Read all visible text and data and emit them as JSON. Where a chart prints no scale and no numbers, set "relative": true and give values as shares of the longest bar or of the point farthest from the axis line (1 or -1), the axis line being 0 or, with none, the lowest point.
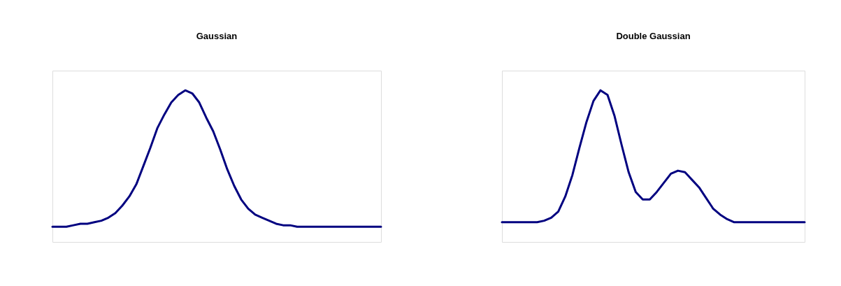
{
  "chart_data": [
    {
      "type": "line",
      "title": "Gaussian",
      "relative": true,
      "grid": false,
      "marker": "none",
      "line_style": "solid",
      "categories": [
        null,
        null,
        null,
        null,
        null,
        null,
        null,
        null,
        null,
        null,
        null,
        null,
        null,
        null,
        null,
        null,
        null,
        null,
        null,
        null,
        null,
        null,
        null,
        null,
        null,
        null,
        null,
        null,
        null,
        null,
        null,
        null,
        null,
        null,
        null,
        null,
        null,
        null,
        null,
        null,
        null,
        null,
        null,
        null,
        null,
        null,
        null,
        null
      ],
      "series": [
        {
          "color": "#000080",
          "values": [
            0.1,
            0.1,
            0.1,
            0.11,
            0.12,
            0.12,
            0.13,
            0.14,
            0.16,
            0.19,
            0.24,
            0.3,
            0.38,
            0.5,
            0.62,
            0.75,
            0.84,
            0.92,
            0.97,
            1.0,
            0.98,
            0.92,
            0.82,
            0.73,
            0.61,
            0.48,
            0.37,
            0.28,
            0.22,
            0.18,
            0.16,
            0.14,
            0.12,
            0.11,
            0.11,
            0.1,
            0.1,
            0.1,
            0.1,
            0.1,
            0.1,
            0.1,
            0.1,
            0.1,
            0.1,
            0.1,
            0.1,
            0.1
          ]
        }
      ]
    },
    {
      "type": "line",
      "title": "Double Gaussian",
      "relative": true,
      "grid": false,
      "marker": "none",
      "line_style": "solid",
      "categories": [
        null,
        null,
        null,
        null,
        null,
        null,
        null,
        null,
        null,
        null,
        null,
        null,
        null,
        null,
        null,
        null,
        null,
        null,
        null,
        null,
        null,
        null,
        null,
        null,
        null,
        null,
        null,
        null,
        null,
        null,
        null,
        null,
        null,
        null,
        null,
        null,
        null,
        null,
        null,
        null,
        null,
        null,
        null,
        null
      ],
      "series": [
        {
          "color": "#000080",
          "values": [
            0.13,
            0.13,
            0.13,
            0.13,
            0.13,
            0.13,
            0.14,
            0.16,
            0.2,
            0.3,
            0.44,
            0.62,
            0.79,
            0.93,
            1.0,
            0.97,
            0.83,
            0.64,
            0.46,
            0.33,
            0.28,
            0.28,
            0.33,
            0.39,
            0.45,
            0.47,
            0.46,
            0.41,
            0.36,
            0.29,
            0.22,
            0.18,
            0.15,
            0.13,
            0.13,
            0.13,
            0.13,
            0.13,
            0.13,
            0.13,
            0.13,
            0.13,
            0.13,
            0.13
          ]
        }
      ]
    }
  ]
}
